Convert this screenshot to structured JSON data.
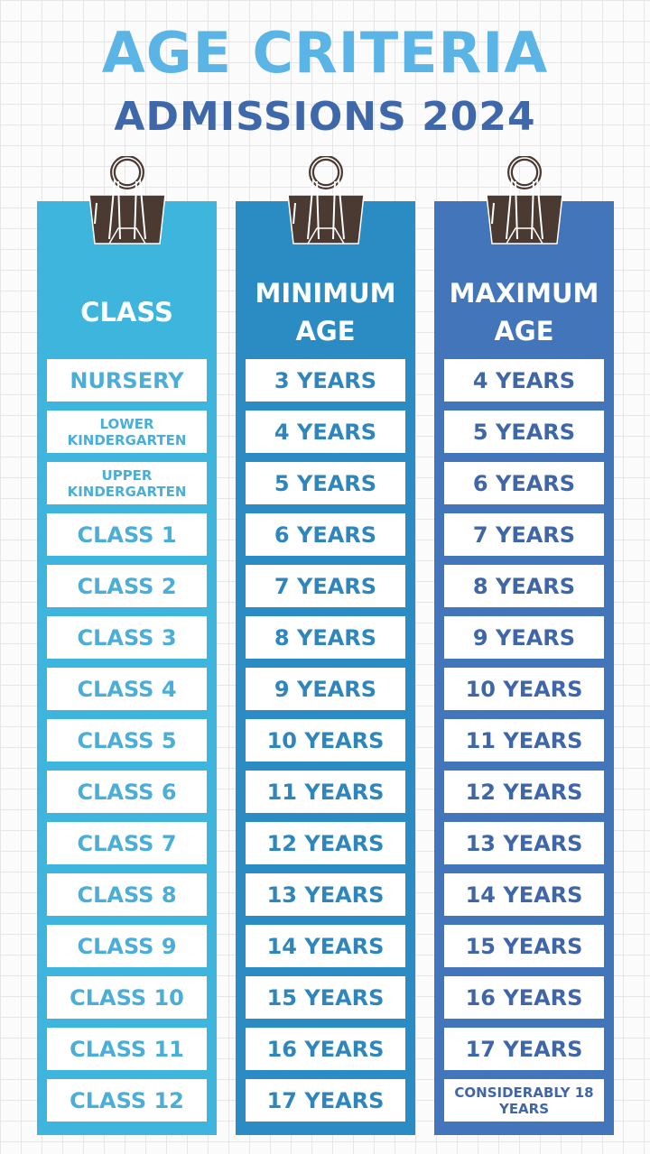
{
  "title": "AGE CRITERIA",
  "subtitle": "ADMISSIONS 2024",
  "colors": {
    "class_column": "#3db5dc",
    "min_column": "#2b8cc4",
    "max_column": "#4275b9",
    "title": "#5ab4e6",
    "subtitle": "#3f68ab"
  },
  "columns": [
    {
      "header": "CLASS",
      "values": [
        "NURSERY",
        "LOWER KINDERGARTEN",
        "UPPER KINDERGARTEN",
        "CLASS 1",
        "CLASS 2",
        "CLASS 3",
        "CLASS 4",
        "CLASS 5",
        "CLASS 6",
        "CLASS 7",
        "CLASS 8",
        "CLASS 9",
        "CLASS 10",
        "CLASS 11",
        "CLASS 12"
      ]
    },
    {
      "header": "MINIMUM AGE",
      "values": [
        "3 YEARS",
        "4 YEARS",
        "5 YEARS",
        "6 YEARS",
        "7 YEARS",
        "8 YEARS",
        "9 YEARS",
        "10 YEARS",
        "11 YEARS",
        "12 YEARS",
        "13 YEARS",
        "14 YEARS",
        "15 YEARS",
        "16 YEARS",
        "17 YEARS"
      ]
    },
    {
      "header": "MAXIMUM AGE",
      "values": [
        "4 YEARS",
        "5 YEARS",
        "6 YEARS",
        "7 YEARS",
        "8 YEARS",
        "9 YEARS",
        "10 YEARS",
        "11 YEARS",
        "12 YEARS",
        "13 YEARS",
        "14 YEARS",
        "15 YEARS",
        "16 YEARS",
        "17 YEARS",
        "CONSIDERABLY 18 YEARS"
      ]
    }
  ]
}
